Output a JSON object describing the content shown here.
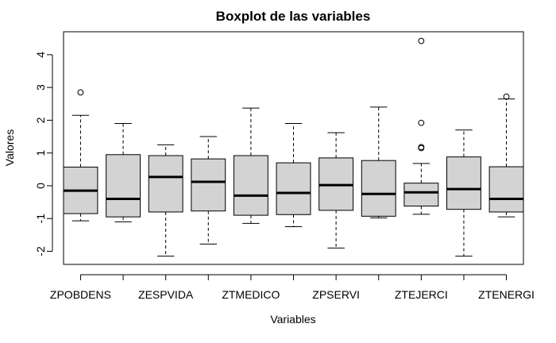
{
  "chart_data": {
    "type": "boxplot",
    "title": "Boxplot de las variables",
    "xlabel": "Variables",
    "ylabel": "Valores",
    "ylim": [
      -2.4,
      4.7
    ],
    "yticks": [
      -2,
      -1,
      0,
      1,
      2,
      3,
      4
    ],
    "grid": false,
    "legend": "none",
    "box_fill": "#d3d3d3",
    "categories": [
      "ZPOBDENS",
      "",
      "ZESPVIDA",
      "",
      "ZTMEDICO",
      "",
      "ZPSERVI",
      "",
      "ZTEJERCI",
      "",
      "ZTENERGI"
    ],
    "boxes": [
      {
        "whisker_low": -1.07,
        "q1": -0.85,
        "median": -0.15,
        "q3": 0.57,
        "whisker_high": 2.15,
        "outliers": [
          2.85
        ]
      },
      {
        "whisker_low": -1.1,
        "q1": -0.95,
        "median": -0.4,
        "q3": 0.95,
        "whisker_high": 1.9,
        "outliers": []
      },
      {
        "whisker_low": -2.15,
        "q1": -0.8,
        "median": 0.27,
        "q3": 0.92,
        "whisker_high": 1.25,
        "outliers": []
      },
      {
        "whisker_low": -1.78,
        "q1": -0.77,
        "median": 0.12,
        "q3": 0.82,
        "whisker_high": 1.5,
        "outliers": []
      },
      {
        "whisker_low": -1.15,
        "q1": -0.9,
        "median": -0.3,
        "q3": 0.92,
        "whisker_high": 2.37,
        "outliers": []
      },
      {
        "whisker_low": -1.25,
        "q1": -0.88,
        "median": -0.22,
        "q3": 0.7,
        "whisker_high": 1.9,
        "outliers": []
      },
      {
        "whisker_low": -1.9,
        "q1": -0.75,
        "median": 0.02,
        "q3": 0.85,
        "whisker_high": 1.62,
        "outliers": []
      },
      {
        "whisker_low": -0.98,
        "q1": -0.93,
        "median": -0.25,
        "q3": 0.77,
        "whisker_high": 2.4,
        "outliers": []
      },
      {
        "whisker_low": -0.87,
        "q1": -0.62,
        "median": -0.2,
        "q3": 0.08,
        "whisker_high": 0.68,
        "outliers": [
          1.15,
          1.18,
          1.92,
          4.42
        ]
      },
      {
        "whisker_low": -2.15,
        "q1": -0.72,
        "median": -0.1,
        "q3": 0.88,
        "whisker_high": 1.7,
        "outliers": []
      },
      {
        "whisker_low": -0.95,
        "q1": -0.8,
        "median": -0.4,
        "q3": 0.58,
        "whisker_high": 2.65,
        "outliers": [
          2.72
        ]
      }
    ]
  }
}
